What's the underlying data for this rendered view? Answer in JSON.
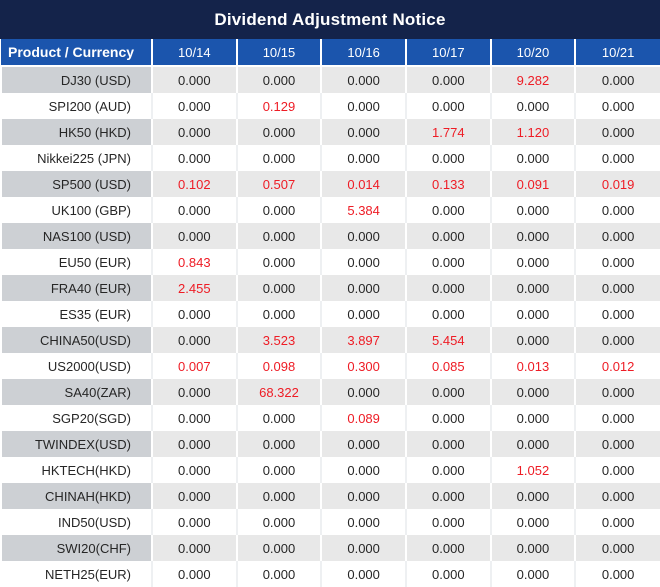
{
  "title": "Dividend Adjustment Notice",
  "columns": [
    "Product / Currency",
    "10/14",
    "10/15",
    "10/16",
    "10/17",
    "10/20",
    "10/21"
  ],
  "rows": [
    {
      "product": "DJ30 (USD)",
      "values": [
        "0.000",
        "0.000",
        "0.000",
        "0.000",
        "9.282",
        "0.000"
      ],
      "red": [
        4
      ]
    },
    {
      "product": "SPI200 (AUD)",
      "values": [
        "0.000",
        "0.129",
        "0.000",
        "0.000",
        "0.000",
        "0.000"
      ],
      "red": [
        1
      ]
    },
    {
      "product": "HK50 (HKD)",
      "values": [
        "0.000",
        "0.000",
        "0.000",
        "1.774",
        "1.120",
        "0.000"
      ],
      "red": [
        3,
        4
      ]
    },
    {
      "product": "Nikkei225 (JPN)",
      "values": [
        "0.000",
        "0.000",
        "0.000",
        "0.000",
        "0.000",
        "0.000"
      ],
      "red": []
    },
    {
      "product": "SP500 (USD)",
      "values": [
        "0.102",
        "0.507",
        "0.014",
        "0.133",
        "0.091",
        "0.019"
      ],
      "red": [
        0,
        1,
        2,
        3,
        4,
        5
      ]
    },
    {
      "product": "UK100 (GBP)",
      "values": [
        "0.000",
        "0.000",
        "5.384",
        "0.000",
        "0.000",
        "0.000"
      ],
      "red": [
        2
      ]
    },
    {
      "product": "NAS100 (USD)",
      "values": [
        "0.000",
        "0.000",
        "0.000",
        "0.000",
        "0.000",
        "0.000"
      ],
      "red": []
    },
    {
      "product": "EU50 (EUR)",
      "values": [
        "0.843",
        "0.000",
        "0.000",
        "0.000",
        "0.000",
        "0.000"
      ],
      "red": [
        0
      ]
    },
    {
      "product": "FRA40 (EUR)",
      "values": [
        "2.455",
        "0.000",
        "0.000",
        "0.000",
        "0.000",
        "0.000"
      ],
      "red": [
        0
      ]
    },
    {
      "product": "ES35 (EUR)",
      "values": [
        "0.000",
        "0.000",
        "0.000",
        "0.000",
        "0.000",
        "0.000"
      ],
      "red": []
    },
    {
      "product": "CHINA50(USD)",
      "values": [
        "0.000",
        "3.523",
        "3.897",
        "5.454",
        "0.000",
        "0.000"
      ],
      "red": [
        1,
        2,
        3
      ]
    },
    {
      "product": "US2000(USD)",
      "values": [
        "0.007",
        "0.098",
        "0.300",
        "0.085",
        "0.013",
        "0.012"
      ],
      "red": [
        0,
        1,
        2,
        3,
        4,
        5
      ]
    },
    {
      "product": "SA40(ZAR)",
      "values": [
        "0.000",
        "68.322",
        "0.000",
        "0.000",
        "0.000",
        "0.000"
      ],
      "red": [
        1
      ]
    },
    {
      "product": "SGP20(SGD)",
      "values": [
        "0.000",
        "0.000",
        "0.089",
        "0.000",
        "0.000",
        "0.000"
      ],
      "red": [
        2
      ]
    },
    {
      "product": "TWINDEX(USD)",
      "values": [
        "0.000",
        "0.000",
        "0.000",
        "0.000",
        "0.000",
        "0.000"
      ],
      "red": []
    },
    {
      "product": "HKTECH(HKD)",
      "values": [
        "0.000",
        "0.000",
        "0.000",
        "0.000",
        "1.052",
        "0.000"
      ],
      "red": [
        4
      ]
    },
    {
      "product": "CHINAH(HKD)",
      "values": [
        "0.000",
        "0.000",
        "0.000",
        "0.000",
        "0.000",
        "0.000"
      ],
      "red": []
    },
    {
      "product": "IND50(USD)",
      "values": [
        "0.000",
        "0.000",
        "0.000",
        "0.000",
        "0.000",
        "0.000"
      ],
      "red": []
    },
    {
      "product": "SWI20(CHF)",
      "values": [
        "0.000",
        "0.000",
        "0.000",
        "0.000",
        "0.000",
        "0.000"
      ],
      "red": []
    },
    {
      "product": "NETH25(EUR)",
      "values": [
        "0.000",
        "0.000",
        "0.000",
        "0.000",
        "0.000",
        "0.000"
      ],
      "red": []
    }
  ],
  "colors": {
    "title_bar_bg": "#14234a",
    "header_bg": "#1b55ad",
    "alt_row_product_bg": "#cdd0d4",
    "alt_row_data_bg": "#e8e8e8",
    "value_text": "#262626",
    "highlight_red": "#ee1c25"
  }
}
